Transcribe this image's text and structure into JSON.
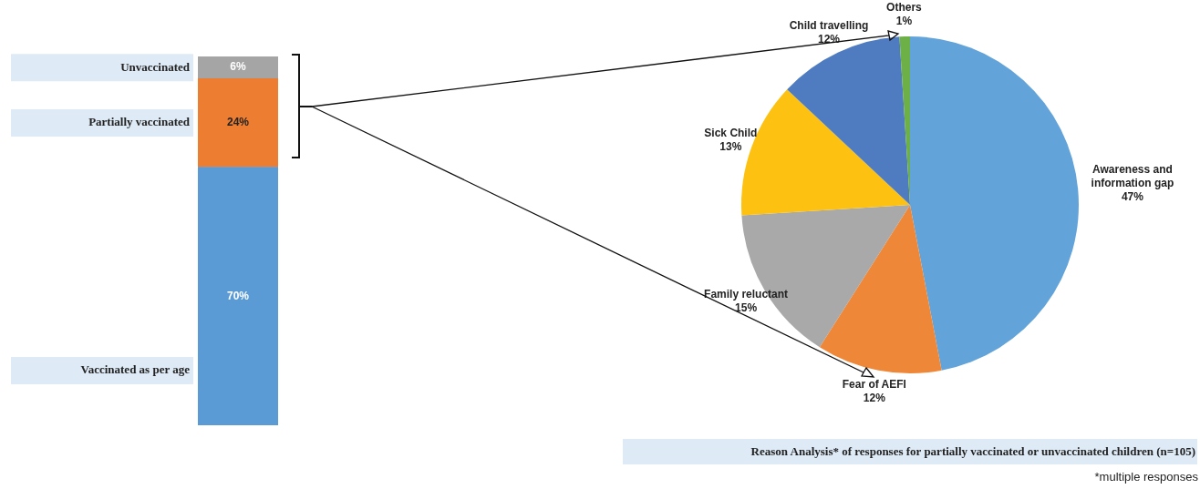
{
  "chart_data": [
    {
      "type": "bar",
      "stacked": true,
      "categories": [
        null
      ],
      "series": [
        {
          "name": "Vaccinated as per age",
          "color": "#5b9bd5",
          "values": [
            70
          ],
          "value_labels": [
            "70%"
          ]
        },
        {
          "name": "Partially vaccinated",
          "color": "#ed7d31",
          "values": [
            24
          ],
          "value_labels": [
            "24%"
          ]
        },
        {
          "name": "Unvaccinated",
          "color": "#a5a5a5",
          "values": [
            6
          ],
          "value_labels": [
            "6%"
          ]
        }
      ]
    },
    {
      "type": "pie",
      "title": "Reason Analysis* of responses for partially vaccinated or unvaccinated children (n=105)",
      "annotations": [
        "*multiple responses"
      ],
      "categories": [
        "Awareness and information gap",
        "Fear of AEFI",
        "Family reluctant",
        "Sick Child",
        "Child travelling",
        "Others"
      ],
      "values": [
        47,
        12,
        15,
        13,
        12,
        1
      ],
      "value_labels": [
        "47%",
        "12%",
        "15%",
        "13%",
        "12%",
        "1%"
      ],
      "colors": [
        "#62a3d9",
        "#ef8738",
        "#a9a9a9",
        "#fdc112",
        "#4f7bc1",
        "#6eb048"
      ]
    }
  ]
}
